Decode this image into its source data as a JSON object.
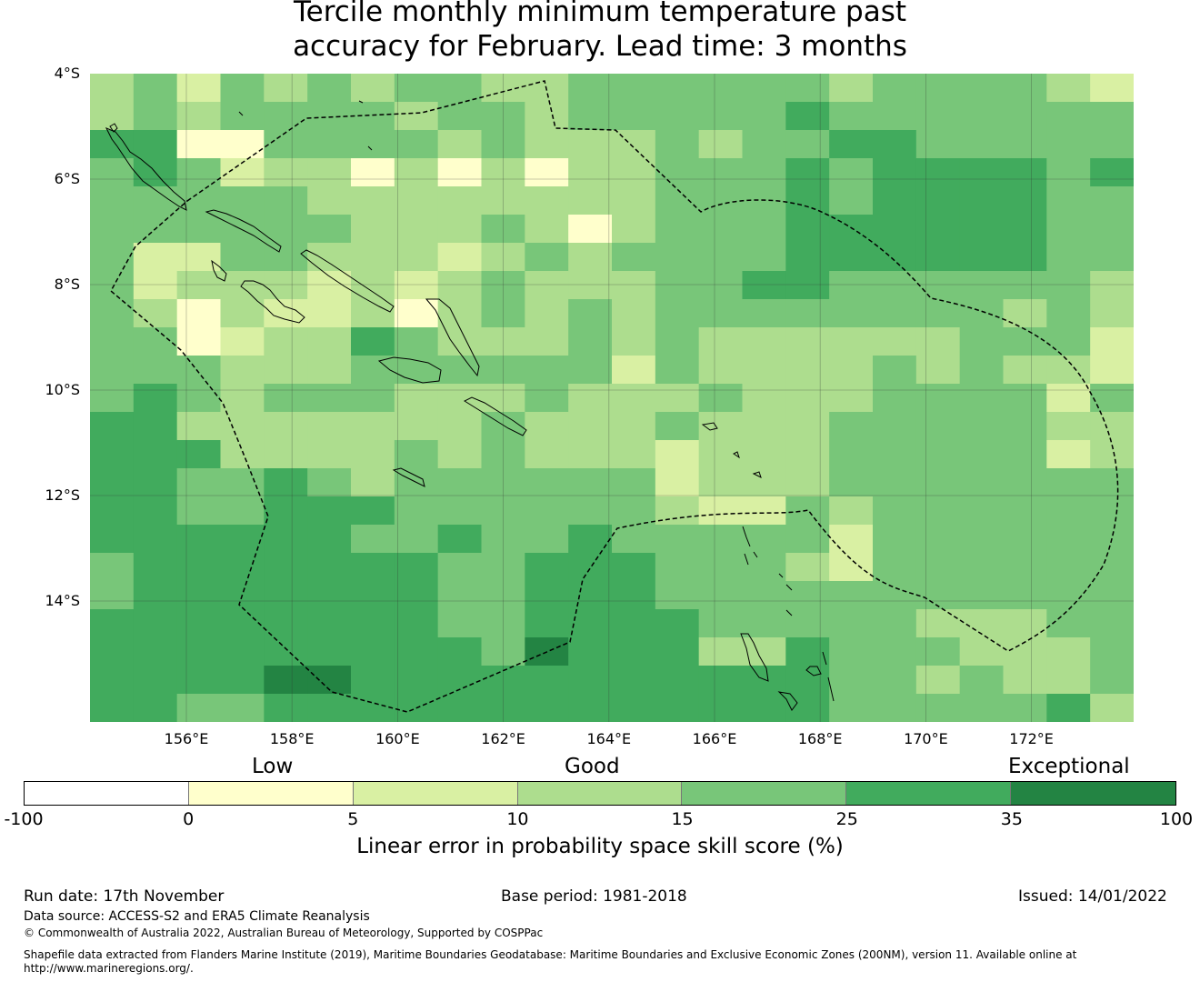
{
  "title_line1": "Tercile monthly minimum temperature past",
  "title_line2": "accuracy for February. Lead time: 3 months",
  "lat_labels": [
    "4°S",
    "6°S",
    "8°S",
    "10°S",
    "12°S",
    "14°S"
  ],
  "lon_labels": [
    "156°E",
    "158°E",
    "160°E",
    "162°E",
    "164°E",
    "166°E",
    "168°E",
    "170°E",
    "172°E"
  ],
  "category_labels": {
    "low": "Low",
    "good": "Good",
    "exceptional": "Exceptional"
  },
  "colorbar": {
    "ticks": [
      "-100",
      "0",
      "5",
      "10",
      "15",
      "25",
      "35",
      "100"
    ],
    "colors": [
      "#ffffff",
      "#ffffcc",
      "#d9f0a3",
      "#addd8e",
      "#78c679",
      "#41ab5d",
      "#238443"
    ],
    "title": "Linear error in probability space skill score (%)"
  },
  "grid": {
    "levels_legend": "0=white,1=0-5,2=5-10,3=10-15,4=15-25,5=25-35,6=35-100",
    "rows": [
      [
        3,
        4,
        2,
        4,
        3,
        4,
        3,
        4,
        4,
        3,
        3,
        4,
        4,
        4,
        4,
        4,
        4,
        3,
        4,
        4,
        4,
        4,
        3,
        2
      ],
      [
        3,
        4,
        3,
        4,
        4,
        4,
        4,
        3,
        4,
        4,
        3,
        4,
        4,
        4,
        4,
        4,
        5,
        4,
        4,
        4,
        4,
        4,
        4,
        4
      ],
      [
        5,
        5,
        1,
        1,
        4,
        4,
        4,
        4,
        3,
        4,
        3,
        3,
        3,
        4,
        3,
        4,
        4,
        5,
        5,
        4,
        4,
        4,
        4,
        4
      ],
      [
        4,
        5,
        4,
        2,
        3,
        3,
        1,
        3,
        1,
        3,
        1,
        3,
        3,
        4,
        4,
        4,
        5,
        4,
        5,
        5,
        5,
        5,
        4,
        5
      ],
      [
        4,
        4,
        4,
        4,
        4,
        3,
        3,
        3,
        3,
        3,
        3,
        3,
        3,
        4,
        4,
        4,
        5,
        4,
        5,
        5,
        5,
        5,
        4,
        4
      ],
      [
        4,
        4,
        4,
        4,
        4,
        4,
        3,
        3,
        3,
        4,
        3,
        1,
        3,
        4,
        4,
        4,
        5,
        5,
        5,
        5,
        5,
        5,
        4,
        4
      ],
      [
        4,
        2,
        2,
        4,
        4,
        3,
        3,
        3,
        2,
        3,
        4,
        3,
        4,
        4,
        4,
        4,
        5,
        5,
        5,
        5,
        5,
        5,
        4,
        4
      ],
      [
        4,
        2,
        3,
        3,
        3,
        2,
        3,
        2,
        3,
        4,
        3,
        3,
        3,
        4,
        4,
        5,
        5,
        4,
        4,
        4,
        4,
        4,
        4,
        3
      ],
      [
        4,
        3,
        1,
        3,
        2,
        2,
        3,
        1,
        3,
        4,
        3,
        4,
        3,
        4,
        4,
        4,
        4,
        4,
        4,
        4,
        4,
        3,
        4,
        3
      ],
      [
        4,
        4,
        1,
        2,
        3,
        3,
        5,
        4,
        3,
        3,
        3,
        4,
        3,
        4,
        3,
        3,
        3,
        3,
        3,
        3,
        4,
        4,
        4,
        2
      ],
      [
        4,
        4,
        4,
        3,
        3,
        3,
        4,
        4,
        4,
        4,
        4,
        4,
        2,
        4,
        3,
        3,
        3,
        3,
        4,
        3,
        4,
        3,
        3,
        2
      ],
      [
        4,
        5,
        4,
        3,
        4,
        4,
        4,
        3,
        3,
        3,
        4,
        3,
        3,
        3,
        4,
        3,
        3,
        3,
        4,
        4,
        4,
        4,
        2,
        4
      ],
      [
        5,
        5,
        3,
        3,
        3,
        3,
        3,
        3,
        3,
        4,
        3,
        3,
        3,
        4,
        3,
        3,
        3,
        4,
        4,
        4,
        4,
        4,
        3,
        3
      ],
      [
        5,
        5,
        5,
        3,
        3,
        3,
        3,
        4,
        3,
        4,
        3,
        3,
        3,
        2,
        3,
        3,
        3,
        4,
        4,
        4,
        4,
        4,
        2,
        3
      ],
      [
        5,
        5,
        4,
        4,
        5,
        4,
        3,
        4,
        4,
        4,
        4,
        4,
        4,
        2,
        3,
        3,
        3,
        4,
        4,
        4,
        4,
        4,
        4,
        4
      ],
      [
        5,
        5,
        4,
        4,
        5,
        5,
        5,
        4,
        4,
        4,
        4,
        4,
        4,
        3,
        2,
        2,
        4,
        3,
        4,
        4,
        4,
        4,
        4,
        4
      ],
      [
        5,
        5,
        5,
        5,
        5,
        5,
        4,
        4,
        5,
        4,
        4,
        5,
        4,
        4,
        4,
        4,
        4,
        2,
        4,
        4,
        4,
        4,
        4,
        4
      ],
      [
        4,
        5,
        5,
        5,
        5,
        5,
        5,
        5,
        4,
        4,
        5,
        5,
        5,
        4,
        4,
        4,
        3,
        2,
        4,
        4,
        4,
        4,
        4,
        4
      ],
      [
        4,
        5,
        5,
        5,
        5,
        5,
        5,
        5,
        4,
        4,
        5,
        5,
        5,
        4,
        4,
        4,
        4,
        4,
        4,
        4,
        4,
        4,
        4,
        4
      ],
      [
        5,
        5,
        5,
        5,
        5,
        5,
        5,
        5,
        4,
        4,
        5,
        5,
        5,
        5,
        4,
        4,
        4,
        4,
        4,
        3,
        3,
        3,
        4,
        4
      ],
      [
        5,
        5,
        5,
        5,
        5,
        5,
        5,
        5,
        5,
        4,
        6,
        5,
        5,
        5,
        3,
        3,
        5,
        4,
        4,
        4,
        3,
        3,
        3,
        4
      ],
      [
        5,
        5,
        5,
        5,
        6,
        6,
        5,
        5,
        5,
        5,
        5,
        5,
        5,
        5,
        5,
        5,
        5,
        4,
        4,
        3,
        4,
        3,
        3,
        4
      ],
      [
        5,
        5,
        4,
        4,
        5,
        5,
        5,
        5,
        5,
        5,
        5,
        5,
        5,
        5,
        5,
        5,
        5,
        4,
        4,
        4,
        4,
        4,
        5,
        3
      ]
    ]
  },
  "footer": {
    "run_date": "Run date: 17th November",
    "base_period": "Base period: 1981-2018",
    "issued": "Issued: 14/01/2022",
    "data_source": "Data source: ACCESS-S2 and ERA5 Climate Reanalysis",
    "copyright": "© Commonwealth of Australia 2022, Australian Bureau of Meteorology, Supported by COSPPac",
    "shapefile_line1": "Shapefile data extracted from Flanders Marine Institute (2019), Maritime Boundaries Geodatabase: Maritime Boundaries and Exclusive Economic Zones (200NM), version 11. Available online at",
    "shapefile_line2": "http://www.marineregions.org/."
  }
}
